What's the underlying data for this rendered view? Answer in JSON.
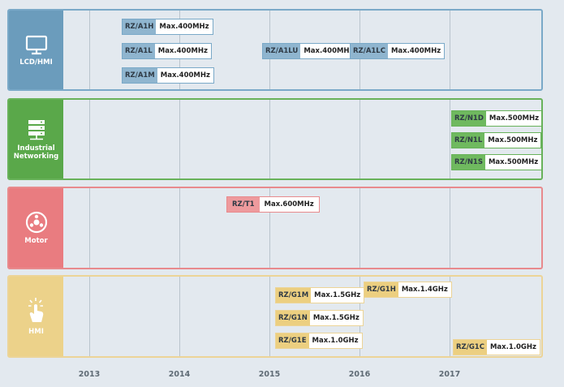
{
  "years": [
    "2013",
    "2014",
    "2015",
    "2016",
    "2017"
  ],
  "bands": [
    {
      "label": "LCD/HMI",
      "icon": "monitor-icon",
      "color": "#6b9cbc",
      "border": "#7aa9c8",
      "label_dark": false,
      "chips": [
        {
          "name": "RZ/A1H",
          "spec": "Max.400MHz"
        },
        {
          "name": "RZ/A1L",
          "spec": "Max.400MHz"
        },
        {
          "name": "RZ/A1M",
          "spec": "Max.400MHz"
        },
        {
          "name": "RZ/A1LU",
          "spec": "Max.400MHz"
        },
        {
          "name": "RZ/A1LC",
          "spec": "Max.400MHz"
        }
      ]
    },
    {
      "label": "Industrial\nNetworking",
      "icon": "server-icon",
      "color": "#5aa84a",
      "border": "#68b25a",
      "label_dark": false,
      "chips": [
        {
          "name": "RZ/N1D",
          "spec": "Max.500MHz"
        },
        {
          "name": "RZ/N1L",
          "spec": "Max.500MHz"
        },
        {
          "name": "RZ/N1S",
          "spec": "Max.500MHz"
        }
      ]
    },
    {
      "label": "Motor",
      "icon": "motor-icon",
      "color": "#e97c80",
      "border": "#e88a8d",
      "label_dark": false,
      "chips": [
        {
          "name": "RZ/T1",
          "spec": "Max.600MHz"
        }
      ]
    },
    {
      "label": "HMI",
      "icon": "touch-hand-icon",
      "color": "#ecd28a",
      "border": "#ecd497",
      "label_dark": false,
      "chips": [
        {
          "name": "RZ/G1M",
          "spec": "Max.1.5GHz"
        },
        {
          "name": "RZ/G1N",
          "spec": "Max.1.5GHz"
        },
        {
          "name": "RZ/G1E",
          "spec": "Max.1.0GHz"
        },
        {
          "name": "RZ/G1H",
          "spec": "Max.1.4GHz"
        },
        {
          "name": "RZ/G1C",
          "spec": "Max.1.0GHz"
        }
      ]
    }
  ]
}
